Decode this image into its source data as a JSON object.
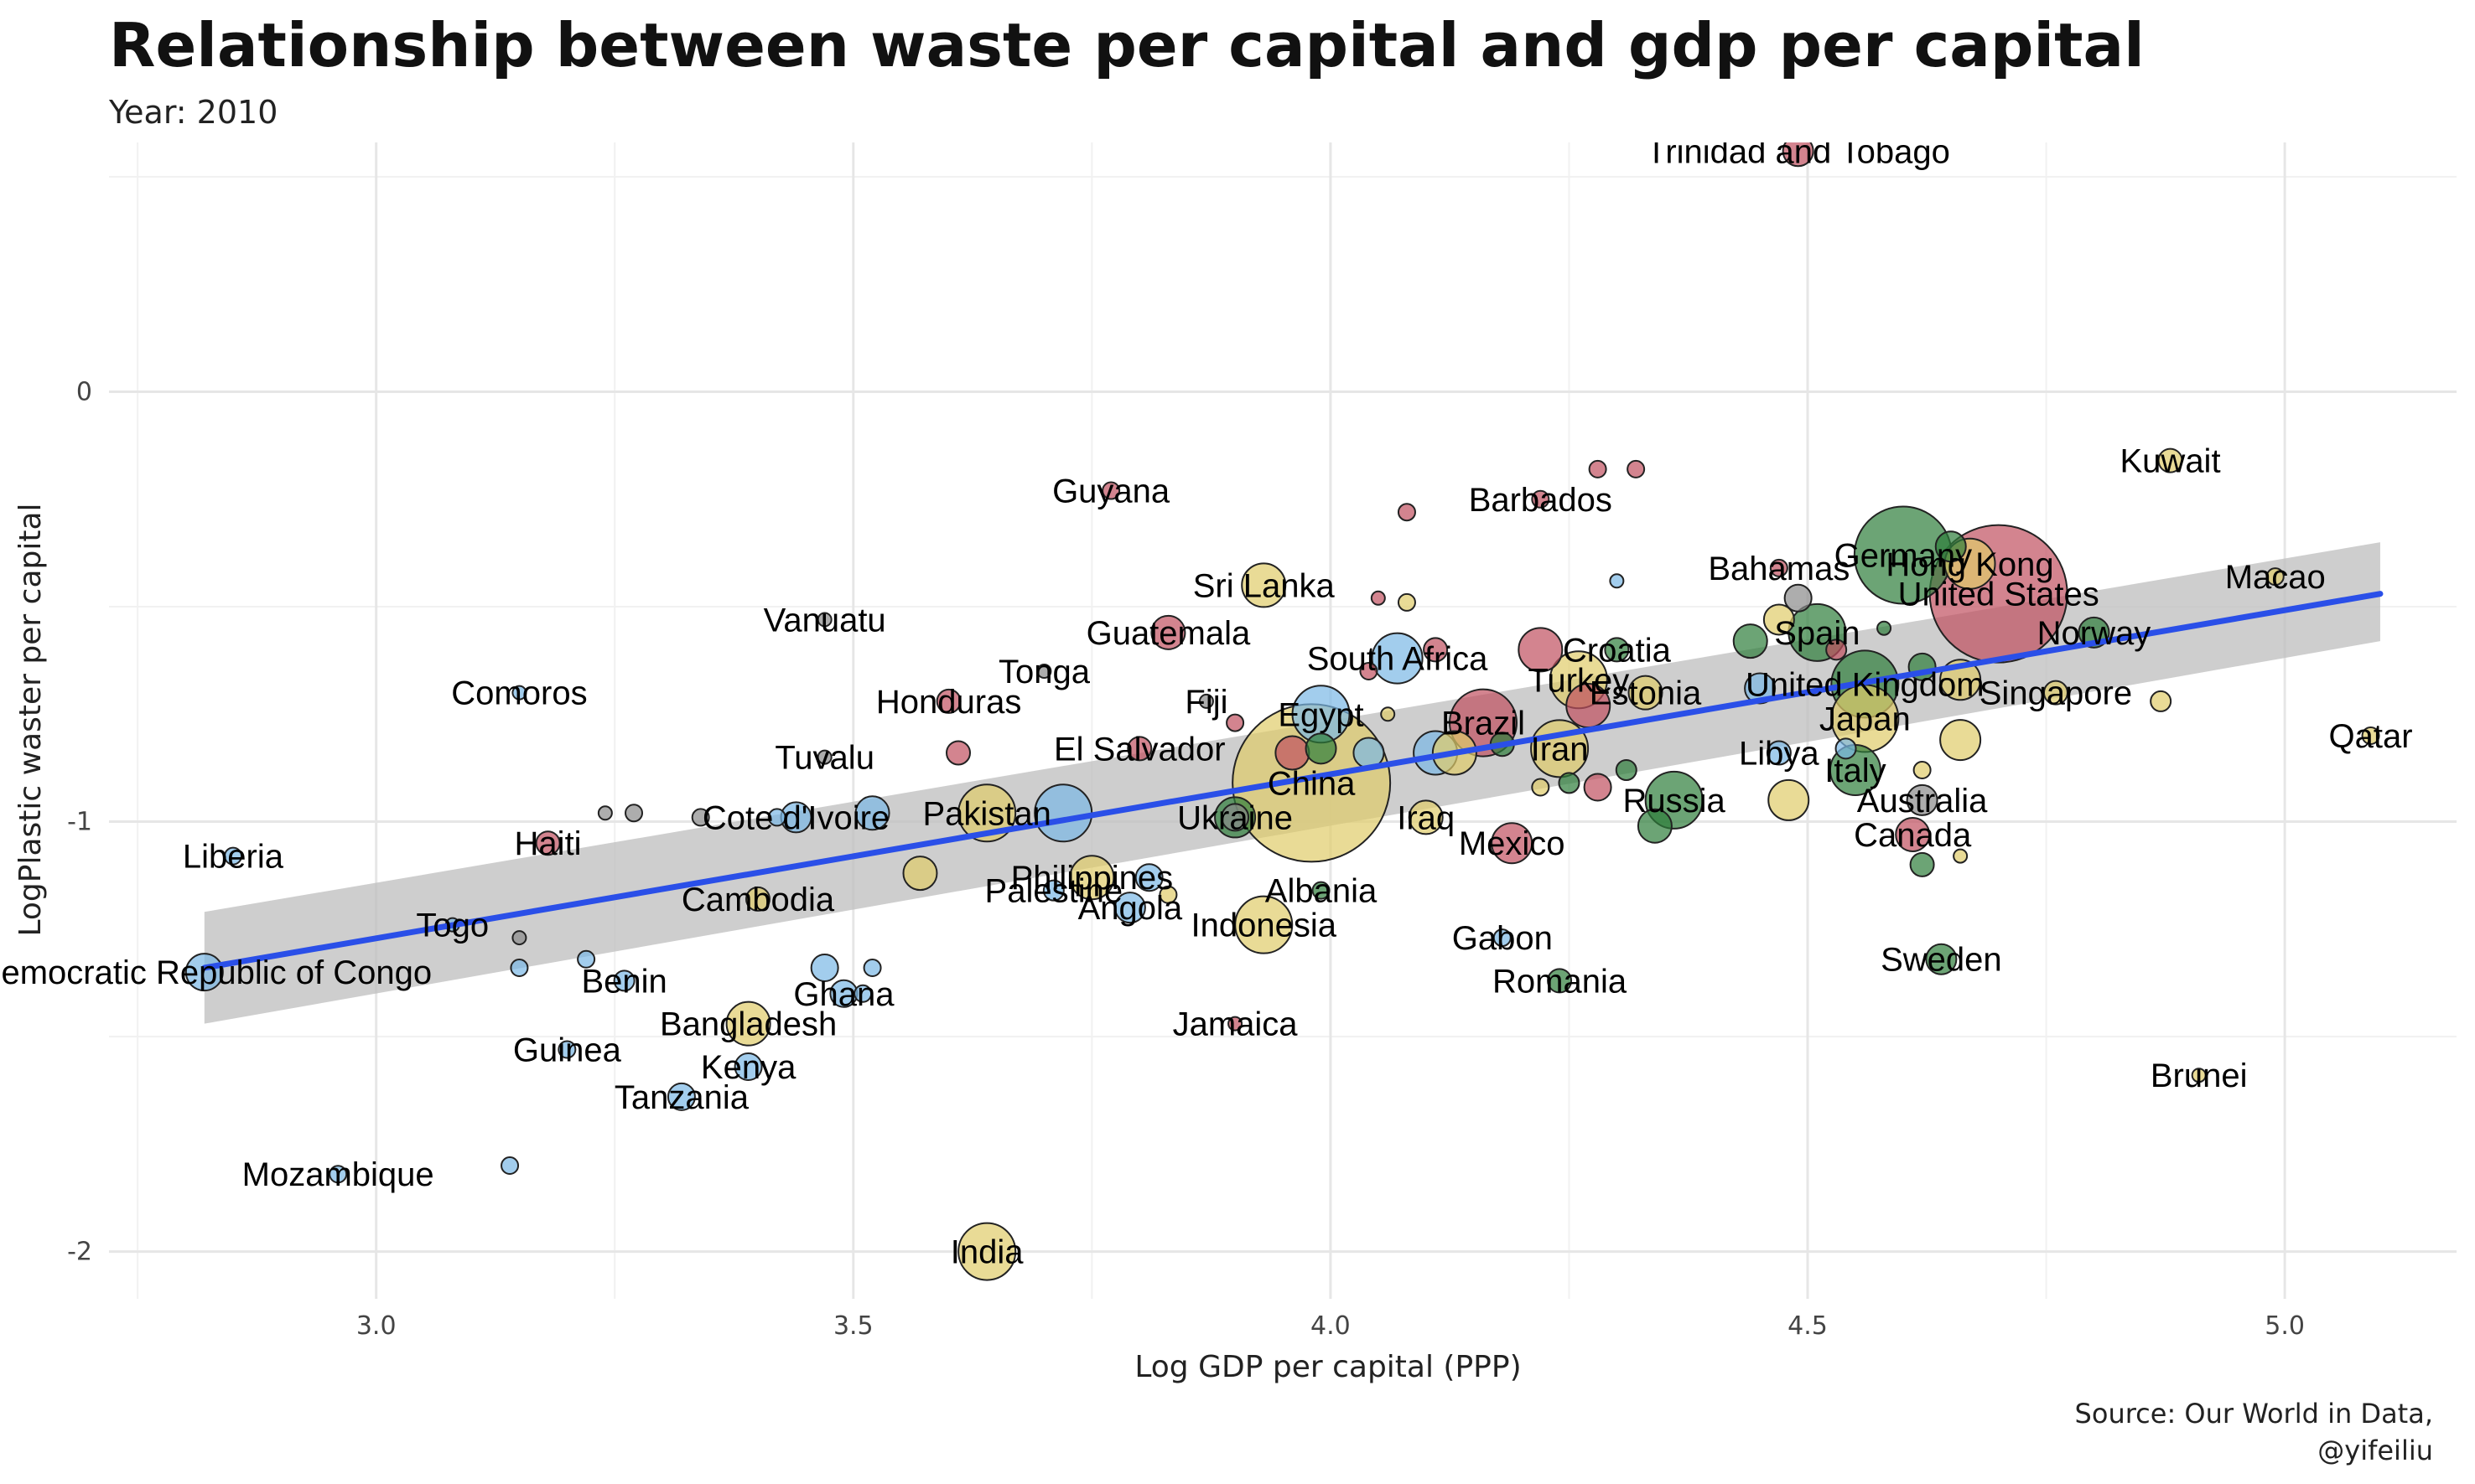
{
  "colors": {
    "red": "#c0505f",
    "green": "#2e7d3a",
    "yellow": "#e0cc6a",
    "blue": "#7ab8e6",
    "grey": "#8a8a8a",
    "trend": "#2a4fe8",
    "ribbon": "#bdbdbd",
    "grid": "#e6e6e6"
  },
  "chart_data": {
    "type": "scatter",
    "title": "Relationship between waste per capital and gdp per capital",
    "subtitle": "Year: 2010",
    "xlabel": "Log GDP per capital (PPP)",
    "ylabel": "LogPlastic waster per capital",
    "xlim": [
      2.72,
      5.18
    ],
    "ylim": [
      -2.11,
      0.58
    ],
    "x_ticks": [
      3.0,
      3.5,
      4.0,
      4.5,
      5.0
    ],
    "x_tick_labels": [
      "3.0",
      "3.5",
      "4.0",
      "4.5",
      "5.0"
    ],
    "y_ticks": [
      -2,
      -1,
      0
    ],
    "y_tick_labels": [
      "-2",
      "-1",
      "0"
    ],
    "grid": true,
    "trend": {
      "x": [
        2.82,
        5.1
      ],
      "y": [
        -1.34,
        -0.47
      ],
      "se_low": [
        -1.47,
        -0.58
      ],
      "se_high": [
        -1.21,
        -0.35
      ]
    },
    "labeled_points": [
      {
        "label": "Trinidad and Tobago",
        "x": 4.49,
        "y": 0.56,
        "size": 18,
        "color": "red"
      },
      {
        "label": "Kuwait",
        "x": 4.88,
        "y": -0.16,
        "size": 14,
        "color": "yellow"
      },
      {
        "label": "Guyana",
        "x": 3.77,
        "y": -0.23,
        "size": 10,
        "color": "red"
      },
      {
        "label": "Barbados",
        "x": 4.22,
        "y": -0.25,
        "size": 10,
        "color": "red"
      },
      {
        "label": "Germany",
        "x": 4.6,
        "y": -0.38,
        "size": 58,
        "color": "green"
      },
      {
        "label": "Hong Kong",
        "x": 4.67,
        "y": -0.4,
        "size": 30,
        "color": "yellow"
      },
      {
        "label": "Bahamas",
        "x": 4.47,
        "y": -0.41,
        "size": 10,
        "color": "red"
      },
      {
        "label": "United States",
        "x": 4.7,
        "y": -0.47,
        "size": 82,
        "color": "red"
      },
      {
        "label": "Macao",
        "x": 4.99,
        "y": -0.43,
        "size": 10,
        "color": "yellow"
      },
      {
        "label": "Sri Lanka",
        "x": 3.93,
        "y": -0.45,
        "size": 26,
        "color": "yellow"
      },
      {
        "label": "Vanuatu",
        "x": 3.47,
        "y": -0.53,
        "size": 8,
        "color": "grey"
      },
      {
        "label": "Guatemala",
        "x": 3.83,
        "y": -0.56,
        "size": 20,
        "color": "red"
      },
      {
        "label": "Spain",
        "x": 4.51,
        "y": -0.56,
        "size": 34,
        "color": "green"
      },
      {
        "label": "Norway",
        "x": 4.8,
        "y": -0.56,
        "size": 18,
        "color": "green"
      },
      {
        "label": "Croatia",
        "x": 4.3,
        "y": -0.6,
        "size": 14,
        "color": "green"
      },
      {
        "label": "South Africa",
        "x": 4.07,
        "y": -0.62,
        "size": 30,
        "color": "blue"
      },
      {
        "label": "Tonga",
        "x": 3.7,
        "y": -0.65,
        "size": 8,
        "color": "grey"
      },
      {
        "label": "Comoros",
        "x": 3.15,
        "y": -0.7,
        "size": 8,
        "color": "blue"
      },
      {
        "label": "United Kingdom",
        "x": 4.56,
        "y": -0.68,
        "size": 40,
        "color": "green"
      },
      {
        "label": "Turkey",
        "x": 4.26,
        "y": -0.67,
        "size": 34,
        "color": "yellow"
      },
      {
        "label": "Honduras",
        "x": 3.6,
        "y": -0.72,
        "size": 14,
        "color": "red"
      },
      {
        "label": "Fiji",
        "x": 3.87,
        "y": -0.72,
        "size": 8,
        "color": "grey"
      },
      {
        "label": "Egypt",
        "x": 3.99,
        "y": -0.75,
        "size": 34,
        "color": "blue"
      },
      {
        "label": "Singapore",
        "x": 4.76,
        "y": -0.7,
        "size": 14,
        "color": "yellow"
      },
      {
        "label": "Estonia",
        "x": 4.33,
        "y": -0.7,
        "size": 20,
        "color": "yellow"
      },
      {
        "label": "Japan",
        "x": 4.56,
        "y": -0.76,
        "size": 40,
        "color": "yellow"
      },
      {
        "label": "Qatar",
        "x": 5.09,
        "y": -0.8,
        "size": 10,
        "color": "yellow"
      },
      {
        "label": "Brazil",
        "x": 4.16,
        "y": -0.77,
        "size": 40,
        "color": "red"
      },
      {
        "label": "Iran",
        "x": 4.24,
        "y": -0.83,
        "size": 34,
        "color": "yellow"
      },
      {
        "label": "Tuvalu",
        "x": 3.47,
        "y": -0.85,
        "size": 8,
        "color": "grey"
      },
      {
        "label": "El Salvador",
        "x": 3.8,
        "y": -0.83,
        "size": 14,
        "color": "red"
      },
      {
        "label": "Libya",
        "x": 4.47,
        "y": -0.84,
        "size": 14,
        "color": "blue"
      },
      {
        "label": "Italy",
        "x": 4.55,
        "y": -0.88,
        "size": 30,
        "color": "green"
      },
      {
        "label": "China",
        "x": 3.98,
        "y": -0.91,
        "size": 94,
        "color": "yellow"
      },
      {
        "label": "Russia",
        "x": 4.36,
        "y": -0.95,
        "size": 34,
        "color": "green"
      },
      {
        "label": "Australia",
        "x": 4.62,
        "y": -0.95,
        "size": 18,
        "color": "grey"
      },
      {
        "label": "Ukraine",
        "x": 3.9,
        "y": -0.99,
        "size": 24,
        "color": "green"
      },
      {
        "label": "Iraq",
        "x": 4.1,
        "y": -0.99,
        "size": 20,
        "color": "yellow"
      },
      {
        "label": "Cote d'Ivoire",
        "x": 3.44,
        "y": -0.99,
        "size": 18,
        "color": "blue"
      },
      {
        "label": "Pakistan",
        "x": 3.64,
        "y": -0.98,
        "size": 34,
        "color": "yellow"
      },
      {
        "label": "Haiti",
        "x": 3.18,
        "y": -1.05,
        "size": 14,
        "color": "red"
      },
      {
        "label": "Canada",
        "x": 4.61,
        "y": -1.03,
        "size": 20,
        "color": "red"
      },
      {
        "label": "Mexico",
        "x": 4.19,
        "y": -1.05,
        "size": 24,
        "color": "red"
      },
      {
        "label": "Liberia",
        "x": 2.85,
        "y": -1.08,
        "size": 10,
        "color": "blue"
      },
      {
        "label": "Philippines",
        "x": 3.75,
        "y": -1.13,
        "size": 26,
        "color": "yellow"
      },
      {
        "label": "Albania",
        "x": 3.99,
        "y": -1.16,
        "size": 10,
        "color": "green"
      },
      {
        "label": "Cambodia",
        "x": 3.4,
        "y": -1.18,
        "size": 14,
        "color": "yellow"
      },
      {
        "label": "Palestine",
        "x": 3.71,
        "y": -1.16,
        "size": 12,
        "color": "blue"
      },
      {
        "label": "Angola",
        "x": 3.79,
        "y": -1.2,
        "size": 18,
        "color": "blue"
      },
      {
        "label": "Indonesia",
        "x": 3.93,
        "y": -1.24,
        "size": 34,
        "color": "yellow"
      },
      {
        "label": "Togo",
        "x": 3.08,
        "y": -1.24,
        "size": 8,
        "color": "blue"
      },
      {
        "label": "Gabon",
        "x": 4.18,
        "y": -1.27,
        "size": 10,
        "color": "blue"
      },
      {
        "label": "Sweden",
        "x": 4.64,
        "y": -1.32,
        "size": 18,
        "color": "green"
      },
      {
        "label": "Democratic Republic of Congo",
        "x": 2.82,
        "y": -1.35,
        "size": 22,
        "color": "blue"
      },
      {
        "label": "Benin",
        "x": 3.26,
        "y": -1.37,
        "size": 12,
        "color": "blue"
      },
      {
        "label": "Romania",
        "x": 4.24,
        "y": -1.37,
        "size": 14,
        "color": "green"
      },
      {
        "label": "Ghana",
        "x": 3.49,
        "y": -1.4,
        "size": 16,
        "color": "blue"
      },
      {
        "label": "Bangladesh",
        "x": 3.39,
        "y": -1.47,
        "size": 26,
        "color": "yellow"
      },
      {
        "label": "Jamaica",
        "x": 3.9,
        "y": -1.47,
        "size": 8,
        "color": "red"
      },
      {
        "label": "Guinea",
        "x": 3.2,
        "y": -1.53,
        "size": 10,
        "color": "blue"
      },
      {
        "label": "Kenya",
        "x": 3.39,
        "y": -1.57,
        "size": 16,
        "color": "blue"
      },
      {
        "label": "Brunei",
        "x": 4.91,
        "y": -1.59,
        "size": 8,
        "color": "yellow"
      },
      {
        "label": "Tanzania",
        "x": 3.32,
        "y": -1.64,
        "size": 16,
        "color": "blue"
      },
      {
        "label": "Mozambique",
        "x": 2.96,
        "y": -1.82,
        "size": 10,
        "color": "blue"
      },
      {
        "label": "India",
        "x": 3.64,
        "y": -2.0,
        "size": 34,
        "color": "yellow"
      }
    ],
    "other_points": [
      {
        "x": 3.14,
        "y": -1.8,
        "size": 10,
        "color": "blue"
      },
      {
        "x": 3.15,
        "y": -1.34,
        "size": 10,
        "color": "blue"
      },
      {
        "x": 3.22,
        "y": -1.32,
        "size": 10,
        "color": "blue"
      },
      {
        "x": 3.15,
        "y": -1.27,
        "size": 8,
        "color": "grey"
      },
      {
        "x": 3.24,
        "y": -0.98,
        "size": 8,
        "color": "grey"
      },
      {
        "x": 3.27,
        "y": -0.98,
        "size": 10,
        "color": "grey"
      },
      {
        "x": 3.34,
        "y": -0.99,
        "size": 10,
        "color": "grey"
      },
      {
        "x": 3.42,
        "y": -0.99,
        "size": 10,
        "color": "blue"
      },
      {
        "x": 3.51,
        "y": -1.4,
        "size": 10,
        "color": "blue"
      },
      {
        "x": 3.47,
        "y": -1.34,
        "size": 16,
        "color": "blue"
      },
      {
        "x": 3.52,
        "y": -1.34,
        "size": 10,
        "color": "blue"
      },
      {
        "x": 3.57,
        "y": -1.12,
        "size": 20,
        "color": "yellow"
      },
      {
        "x": 3.52,
        "y": -0.98,
        "size": 20,
        "color": "blue"
      },
      {
        "x": 3.61,
        "y": -0.84,
        "size": 14,
        "color": "red"
      },
      {
        "x": 3.72,
        "y": -0.98,
        "size": 34,
        "color": "blue"
      },
      {
        "x": 3.81,
        "y": -1.13,
        "size": 16,
        "color": "blue"
      },
      {
        "x": 3.83,
        "y": -1.17,
        "size": 10,
        "color": "yellow"
      },
      {
        "x": 3.9,
        "y": -0.77,
        "size": 10,
        "color": "red"
      },
      {
        "x": 3.96,
        "y": -0.84,
        "size": 20,
        "color": "red"
      },
      {
        "x": 4.04,
        "y": -0.84,
        "size": 18,
        "color": "blue"
      },
      {
        "x": 4.11,
        "y": -0.84,
        "size": 26,
        "color": "blue"
      },
      {
        "x": 4.13,
        "y": -0.84,
        "size": 26,
        "color": "yellow"
      },
      {
        "x": 4.18,
        "y": -0.82,
        "size": 14,
        "color": "green"
      },
      {
        "x": 4.11,
        "y": -0.6,
        "size": 14,
        "color": "red"
      },
      {
        "x": 4.04,
        "y": -0.65,
        "size": 10,
        "color": "red"
      },
      {
        "x": 4.22,
        "y": -0.6,
        "size": 26,
        "color": "red"
      },
      {
        "x": 4.08,
        "y": -0.49,
        "size": 10,
        "color": "yellow"
      },
      {
        "x": 4.05,
        "y": -0.48,
        "size": 8,
        "color": "red"
      },
      {
        "x": 4.08,
        "y": -0.28,
        "size": 10,
        "color": "red"
      },
      {
        "x": 4.28,
        "y": -0.18,
        "size": 10,
        "color": "red"
      },
      {
        "x": 4.32,
        "y": -0.18,
        "size": 10,
        "color": "red"
      },
      {
        "x": 4.3,
        "y": -0.44,
        "size": 8,
        "color": "blue"
      },
      {
        "x": 4.27,
        "y": -0.73,
        "size": 26,
        "color": "red"
      },
      {
        "x": 4.22,
        "y": -0.92,
        "size": 10,
        "color": "yellow"
      },
      {
        "x": 4.25,
        "y": -0.91,
        "size": 12,
        "color": "green"
      },
      {
        "x": 4.28,
        "y": -0.92,
        "size": 16,
        "color": "red"
      },
      {
        "x": 4.31,
        "y": -0.88,
        "size": 12,
        "color": "green"
      },
      {
        "x": 4.34,
        "y": -1.01,
        "size": 20,
        "color": "green"
      },
      {
        "x": 4.48,
        "y": -0.95,
        "size": 24,
        "color": "yellow"
      },
      {
        "x": 4.44,
        "y": -0.58,
        "size": 20,
        "color": "green"
      },
      {
        "x": 4.47,
        "y": -0.53,
        "size": 18,
        "color": "yellow"
      },
      {
        "x": 4.45,
        "y": -0.69,
        "size": 18,
        "color": "blue"
      },
      {
        "x": 4.49,
        "y": -0.48,
        "size": 16,
        "color": "grey"
      },
      {
        "x": 4.53,
        "y": -0.6,
        "size": 12,
        "color": "red"
      },
      {
        "x": 4.54,
        "y": -0.83,
        "size": 12,
        "color": "blue"
      },
      {
        "x": 4.58,
        "y": -0.55,
        "size": 8,
        "color": "green"
      },
      {
        "x": 4.62,
        "y": -0.64,
        "size": 16,
        "color": "green"
      },
      {
        "x": 4.65,
        "y": -0.36,
        "size": 18,
        "color": "green"
      },
      {
        "x": 4.66,
        "y": -0.67,
        "size": 24,
        "color": "yellow"
      },
      {
        "x": 4.66,
        "y": -0.81,
        "size": 24,
        "color": "yellow"
      },
      {
        "x": 4.62,
        "y": -0.88,
        "size": 10,
        "color": "yellow"
      },
      {
        "x": 4.62,
        "y": -1.1,
        "size": 14,
        "color": "green"
      },
      {
        "x": 4.66,
        "y": -1.08,
        "size": 8,
        "color": "yellow"
      },
      {
        "x": 4.87,
        "y": -0.72,
        "size": 12,
        "color": "yellow"
      },
      {
        "x": 4.06,
        "y": -0.75,
        "size": 8,
        "color": "yellow"
      },
      {
        "x": 3.9,
        "y": -0.99,
        "size": 16,
        "color": "grey"
      },
      {
        "x": 3.99,
        "y": -0.83,
        "size": 18,
        "color": "green"
      }
    ]
  },
  "caption": {
    "line1": "Source: Our World in Data,",
    "line2": "@yifeiliu"
  }
}
